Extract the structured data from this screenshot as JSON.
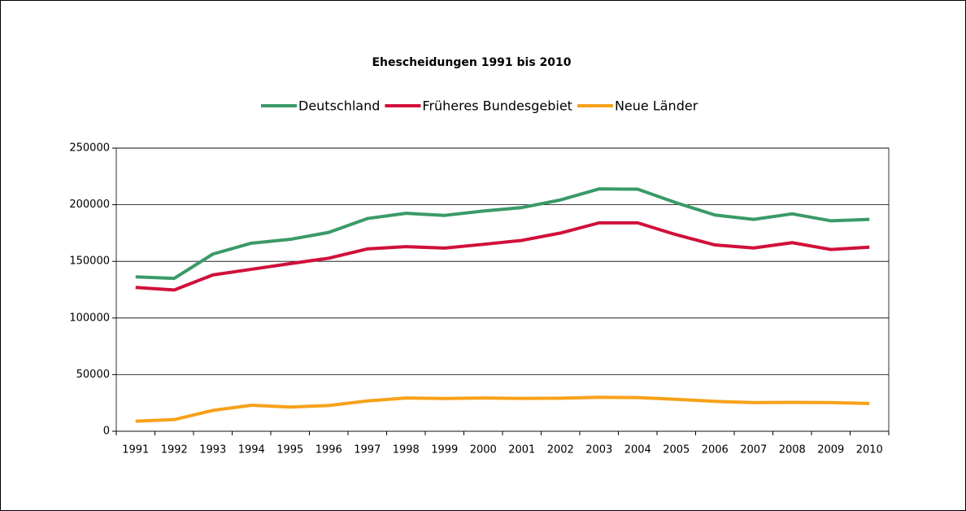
{
  "chart_data": {
    "type": "line",
    "title": "Ehescheidungen 1991 bis 2010",
    "categories": [
      "1991",
      "1992",
      "1993",
      "1994",
      "1995",
      "1996",
      "1997",
      "1998",
      "1999",
      "2000",
      "2001",
      "2002",
      "2003",
      "2004",
      "2005",
      "2006",
      "2007",
      "2008",
      "2009",
      "2010"
    ],
    "series": [
      {
        "name": "Deutschland",
        "color": "#3a9a68",
        "values": [
          136317,
          135010,
          156425,
          166052,
          169425,
          175550,
          187802,
          192416,
          190590,
          194408,
          197498,
          204214,
          213975,
          213691,
          201693,
          190928,
          187072,
          191948,
          185817,
          187027
        ]
      },
      {
        "name": "Früheres Bundesgebiet",
        "color": "#d0103a",
        "values": [
          127000,
          124700,
          138000,
          143000,
          148000,
          152800,
          161000,
          163000,
          161700,
          165000,
          168500,
          175000,
          184000,
          184000,
          173500,
          164500,
          161800,
          166500,
          160500,
          162500
        ]
      },
      {
        "name": "Neue Länder",
        "color": "#f7a11a",
        "values": [
          8900,
          10300,
          18400,
          23000,
          21400,
          22700,
          26800,
          29400,
          28900,
          29400,
          29000,
          29200,
          30000,
          29700,
          28200,
          26400,
          25300,
          25500,
          25300,
          24500
        ]
      }
    ],
    "ylim": [
      0,
      250000
    ],
    "yticks": [
      0,
      50000,
      100000,
      150000,
      200000,
      250000
    ],
    "grid": true
  }
}
